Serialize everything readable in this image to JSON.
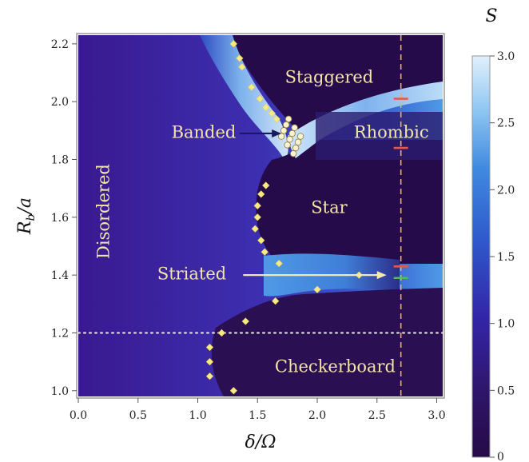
{
  "chart_data": {
    "type": "heatmap",
    "title": "",
    "xlabel": "δ/Ω",
    "ylabel": "R_b/a",
    "xlim": [
      0,
      3.05
    ],
    "ylim": [
      0.98,
      2.23
    ],
    "x_ticks": [
      "0.0",
      "0.5",
      "1.0",
      "1.5",
      "2.0",
      "2.5",
      "3.0"
    ],
    "y_ticks": [
      "1.0",
      "1.2",
      "1.4",
      "1.6",
      "1.8",
      "2.0",
      "2.2"
    ],
    "colorbar": {
      "label": "S",
      "range": [
        0,
        3.0
      ],
      "ticks": [
        "0",
        "0.5",
        "1.0",
        "1.5",
        "2.0",
        "2.5",
        "3.0"
      ],
      "colors": [
        "#250a48",
        "#3a1f8a",
        "#2e4fc4",
        "#3f8ae0",
        "#88c2f2",
        "#d8ecfb"
      ]
    },
    "region_labels": [
      {
        "text": "Disordered",
        "x": 0.22,
        "y": 1.62
      },
      {
        "text": "Staggered",
        "x": 2.1,
        "y": 2.08
      },
      {
        "text": "Banded",
        "x": 1.05,
        "y": 1.89
      },
      {
        "text": "Rhombic",
        "x": 2.62,
        "y": 1.89
      },
      {
        "text": "Star",
        "x": 2.1,
        "y": 1.63
      },
      {
        "text": "Striated",
        "x": 0.95,
        "y": 1.4
      },
      {
        "text": "Checkerboard",
        "x": 2.15,
        "y": 1.08
      }
    ],
    "boundary_points": [
      {
        "x": 1.3,
        "y": 2.2
      },
      {
        "x": 1.35,
        "y": 2.15
      },
      {
        "x": 1.37,
        "y": 2.12
      },
      {
        "x": 1.45,
        "y": 2.05
      },
      {
        "x": 1.52,
        "y": 2.01
      },
      {
        "x": 1.57,
        "y": 1.98
      },
      {
        "x": 1.62,
        "y": 1.96
      },
      {
        "x": 1.66,
        "y": 1.94
      },
      {
        "x": 1.57,
        "y": 1.71
      },
      {
        "x": 1.53,
        "y": 1.68
      },
      {
        "x": 1.5,
        "y": 1.64
      },
      {
        "x": 1.5,
        "y": 1.6
      },
      {
        "x": 1.48,
        "y": 1.56
      },
      {
        "x": 1.53,
        "y": 1.52
      },
      {
        "x": 1.56,
        "y": 1.48
      },
      {
        "x": 1.68,
        "y": 1.44
      },
      {
        "x": 2.35,
        "y": 1.4
      },
      {
        "x": 2.0,
        "y": 1.35
      },
      {
        "x": 1.65,
        "y": 1.31
      },
      {
        "x": 1.4,
        "y": 1.24
      },
      {
        "x": 1.2,
        "y": 1.2
      },
      {
        "x": 1.1,
        "y": 1.15
      },
      {
        "x": 1.1,
        "y": 1.1
      },
      {
        "x": 1.1,
        "y": 1.05
      },
      {
        "x": 1.3,
        "y": 1.0
      }
    ],
    "banded_points": [
      {
        "x": 1.7,
        "y": 1.88
      },
      {
        "x": 1.72,
        "y": 1.9
      },
      {
        "x": 1.74,
        "y": 1.92
      },
      {
        "x": 1.76,
        "y": 1.94
      },
      {
        "x": 1.75,
        "y": 1.85
      },
      {
        "x": 1.77,
        "y": 1.87
      },
      {
        "x": 1.79,
        "y": 1.89
      },
      {
        "x": 1.81,
        "y": 1.91
      },
      {
        "x": 1.8,
        "y": 1.82
      },
      {
        "x": 1.82,
        "y": 1.84
      },
      {
        "x": 1.84,
        "y": 1.86
      },
      {
        "x": 1.86,
        "y": 1.88
      }
    ],
    "arrows": [
      {
        "from": {
          "x": 1.35,
          "y": 1.89
        },
        "to": {
          "x": 1.7,
          "y": 1.89
        },
        "color": "#1a1a5e"
      },
      {
        "from": {
          "x": 1.38,
          "y": 1.4
        },
        "to": {
          "x": 2.58,
          "y": 1.4
        },
        "color": "#f6e9b0"
      }
    ],
    "horizontal_line": {
      "y": 1.2,
      "style": "dotted",
      "color": "#f0eef8"
    },
    "vertical_line": {
      "x": 2.7,
      "style": "dashed",
      "color": "#e0b45c"
    },
    "markers": [
      {
        "x": 2.7,
        "y": 2.01,
        "color": "#e8584a"
      },
      {
        "x": 2.7,
        "y": 1.84,
        "color": "#e8584a"
      },
      {
        "x": 2.7,
        "y": 1.43,
        "color": "#e8584a"
      },
      {
        "x": 2.7,
        "y": 1.39,
        "color": "#4fbf4f"
      }
    ],
    "grid": false
  }
}
